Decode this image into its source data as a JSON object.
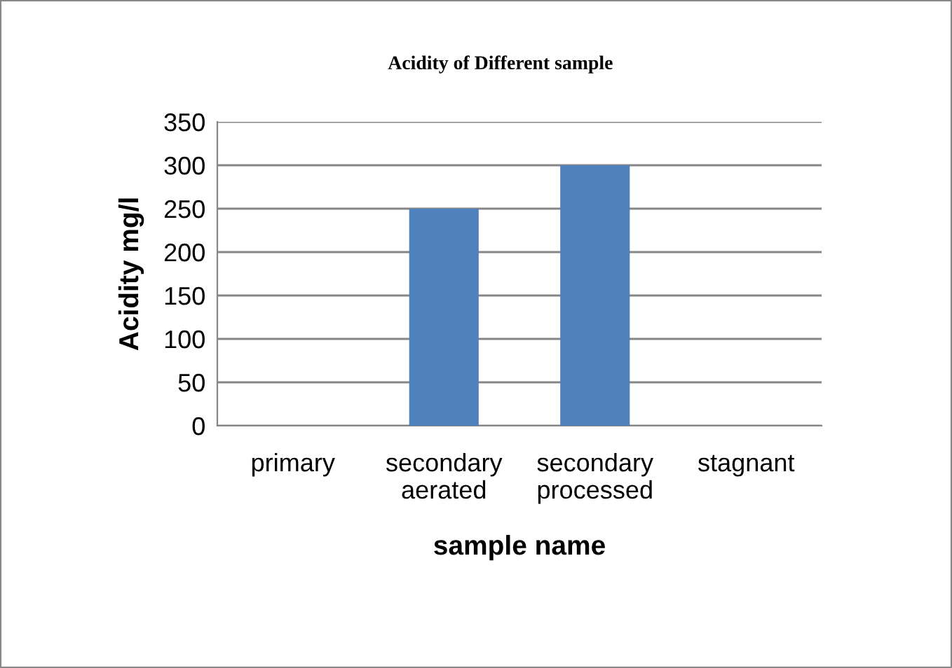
{
  "chart_data": {
    "type": "bar",
    "title": "Acidity of Different sample",
    "xlabel": "sample name",
    "ylabel": "Acidity mg/l",
    "categories": [
      "primary",
      "secondary aerated",
      "secondary processed",
      "stagnant"
    ],
    "values": [
      0,
      250,
      300,
      0
    ],
    "color": "#4f81bd",
    "ylim": [
      0,
      350
    ],
    "yticks": [
      0,
      50,
      100,
      150,
      200,
      250,
      300,
      350
    ],
    "grid": "y"
  }
}
